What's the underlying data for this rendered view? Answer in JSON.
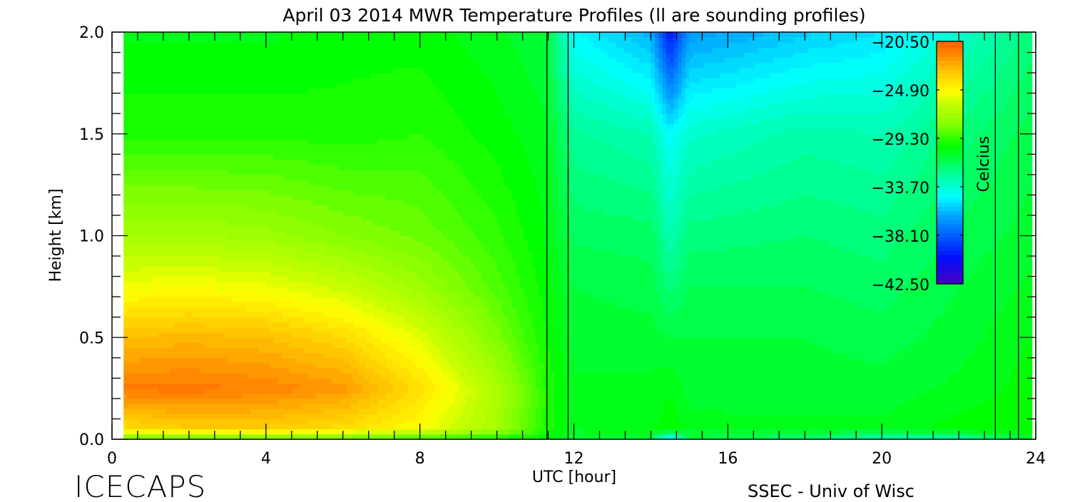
{
  "chart_data": {
    "type": "heatmap",
    "title": "April 03 2014 MWR Temperature Profiles (ll are sounding profiles)",
    "xlabel": "UTC [hour]",
    "ylabel": "Height [km]",
    "xlim": [
      0,
      24
    ],
    "ylim": [
      0,
      2.0
    ],
    "xticks": [
      "0",
      "4",
      "8",
      "12",
      "16",
      "20",
      "24"
    ],
    "xtick_values": [
      0,
      4,
      8,
      12,
      16,
      20,
      24
    ],
    "yticks": [
      "0.0",
      "0.5",
      "1.0",
      "1.5",
      "2.0"
    ],
    "ytick_values": [
      0,
      0.5,
      1.0,
      1.5,
      2.0
    ],
    "colorbar": {
      "label": "Celcius",
      "range": [
        -42.5,
        -20.5
      ],
      "tick_labels": [
        "-20.50",
        "-24.90",
        "-29.30",
        "-33.70",
        "-38.10",
        "-42.50"
      ],
      "tick_values": [
        -20.5,
        -24.9,
        -29.3,
        -33.7,
        -38.1,
        -42.5
      ]
    },
    "sounding_times_hours": [
      11.3,
      11.85,
      22.95,
      23.55
    ],
    "grid_times_hours": [
      0.3,
      2,
      4,
      6,
      8,
      10,
      11.3,
      12,
      14,
      14.5,
      15,
      18,
      20,
      22,
      23.9
    ],
    "grid_heights_km": [
      0,
      0.05,
      0.25,
      0.5,
      0.75,
      1.0,
      1.5,
      2.0
    ],
    "temperature_celsius": [
      [
        -29,
        -24,
        -21.3,
        -23,
        -25.2,
        -27,
        -29.5,
        -30.3
      ],
      [
        -29,
        -23.5,
        -21.2,
        -22.8,
        -25,
        -27,
        -29.5,
        -30.3
      ],
      [
        -29,
        -23.5,
        -21.5,
        -23,
        -25.3,
        -27.2,
        -29.5,
        -30.3
      ],
      [
        -29,
        -24,
        -22,
        -23.8,
        -26,
        -27.8,
        -29.6,
        -30
      ],
      [
        -29.5,
        -25,
        -24,
        -25.5,
        -27.2,
        -28.3,
        -29.4,
        -30
      ],
      [
        -30,
        -27,
        -26.8,
        -28,
        -28.8,
        -29.3,
        -30,
        -30.5
      ],
      [
        -30,
        -29.5,
        -29.5,
        -29.8,
        -30,
        -30.2,
        -30.5,
        -31
      ],
      [
        -31,
        -30.5,
        -30.5,
        -30.8,
        -31,
        -31.5,
        -32.5,
        -34.5
      ],
      [
        -31,
        -30.3,
        -30.5,
        -30.8,
        -31.2,
        -31.6,
        -33,
        -36
      ],
      [
        -36,
        -29.8,
        -30.3,
        -31,
        -32,
        -33,
        -34.5,
        -40
      ],
      [
        -31,
        -30.5,
        -30.7,
        -31,
        -31.4,
        -32,
        -33.5,
        -36.5
      ],
      [
        -32,
        -30.5,
        -30.8,
        -31,
        -31.4,
        -31.8,
        -32.8,
        -35.5
      ],
      [
        -33,
        -30.5,
        -30.8,
        -31.2,
        -31.6,
        -32,
        -33,
        -35
      ],
      [
        -33,
        -30,
        -30.5,
        -30.8,
        -31,
        -31.3,
        -32,
        -33.5
      ],
      [
        -31,
        -29.8,
        -30,
        -30.2,
        -30.5,
        -30.8,
        -31.2,
        -32
      ]
    ]
  },
  "footer": {
    "left": "ICECAPS",
    "right": "SSEC - Univ of Wisc"
  }
}
